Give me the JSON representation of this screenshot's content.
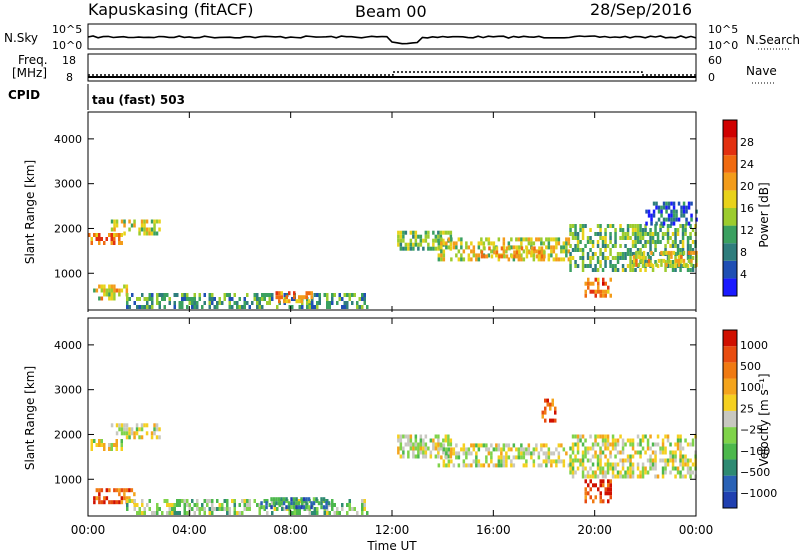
{
  "header": {
    "station": "Kapuskasing (fitACF)",
    "beam": "Beam 00",
    "date": "28/Sep/2016"
  },
  "strip_panels": {
    "nsky_label": "N.Sky",
    "nsky_ticks": [
      "10^5",
      "10^0"
    ],
    "nsearch_label": "N.Search",
    "nsearch_ticks": [
      "10^5",
      "10^0"
    ],
    "freq_label_line1": "Freq.",
    "freq_label_line2": "[MHz]",
    "freq_ticks": [
      "18",
      "8"
    ],
    "nave_label": "Nave",
    "nave_ticks": [
      "60",
      "0"
    ],
    "cpid_label": "CPID",
    "cpid_value": "tau (fast) 503"
  },
  "chart_data": [
    {
      "type": "heatmap",
      "name": "power",
      "ylabel": "Slant Range [km]",
      "ylim": [
        180,
        4600
      ],
      "yticks": [
        1000,
        2000,
        3000,
        4000
      ],
      "xlim": [
        0,
        24
      ],
      "colorbar": {
        "label": "Power [dB]",
        "ticks": [
          "4",
          "8",
          "12",
          "16",
          "20",
          "24",
          "28"
        ],
        "colors": [
          "#1a1aff",
          "#1f4fb4",
          "#2e7d7d",
          "#3aa060",
          "#9ccc2e",
          "#e8d21a",
          "#f39c1a",
          "#f06a10",
          "#e23010",
          "#d00000"
        ]
      },
      "regions": [
        {
          "t0": 0.0,
          "t1": 1.3,
          "r0": 1650,
          "r1": 1900,
          "level": 0.72
        },
        {
          "t0": 0.9,
          "t1": 2.8,
          "r0": 1900,
          "r1": 2200,
          "level": 0.45
        },
        {
          "t0": 0.2,
          "t1": 1.5,
          "r0": 450,
          "r1": 750,
          "level": 0.55
        },
        {
          "t0": 1.5,
          "t1": 11.0,
          "r0": 250,
          "r1": 560,
          "level": 0.3
        },
        {
          "t0": 7.4,
          "t1": 8.8,
          "r0": 400,
          "r1": 600,
          "level": 0.7
        },
        {
          "t0": 12.2,
          "t1": 14.3,
          "r0": 1550,
          "r1": 1950,
          "level": 0.42
        },
        {
          "t0": 13.8,
          "t1": 19.0,
          "r0": 1300,
          "r1": 1800,
          "level": 0.5
        },
        {
          "t0": 15.5,
          "t1": 18.0,
          "r0": 1350,
          "r1": 1600,
          "level": 0.62
        },
        {
          "t0": 19.0,
          "t1": 24.0,
          "r0": 1100,
          "r1": 2100,
          "level": 0.38
        },
        {
          "t0": 19.6,
          "t1": 20.6,
          "r0": 500,
          "r1": 900,
          "level": 0.75
        },
        {
          "t0": 21.5,
          "t1": 24.0,
          "r0": 1200,
          "r1": 1500,
          "level": 0.55
        },
        {
          "t0": 22.0,
          "t1": 24.0,
          "r0": 2100,
          "r1": 2600,
          "level": 0.2
        }
      ]
    },
    {
      "type": "heatmap",
      "name": "velocity",
      "ylabel": "Slant Range [km]",
      "ylim": [
        180,
        4600
      ],
      "yticks": [
        1000,
        2000,
        3000,
        4000
      ],
      "xlim": [
        0,
        24
      ],
      "xticks": [
        "00:00",
        "04:00",
        "08:00",
        "12:00",
        "16:00",
        "20:00",
        "00:00"
      ],
      "xlabel": "Time UT",
      "colorbar": {
        "label": "Velocity [m s⁻¹]",
        "ticks": [
          "1000",
          "500",
          "100",
          "25",
          "−25",
          "−100",
          "−500",
          "−1000"
        ],
        "colors": [
          "#2040b0",
          "#2a62b6",
          "#2e8a72",
          "#4cb84c",
          "#7fd34a",
          "#c8c8c0",
          "#f5d020",
          "#f4a41c",
          "#f07a12",
          "#e84c10",
          "#d01000"
        ]
      },
      "regions": [
        {
          "t0": 0.0,
          "t1": 1.3,
          "r0": 1650,
          "r1": 1900,
          "level": 0.5
        },
        {
          "t0": 0.9,
          "t1": 2.8,
          "r0": 1900,
          "r1": 2250,
          "level": 0.5
        },
        {
          "t0": 0.2,
          "t1": 1.8,
          "r0": 450,
          "r1": 800,
          "level": 0.82
        },
        {
          "t0": 1.5,
          "t1": 11.0,
          "r0": 250,
          "r1": 560,
          "level": 0.42
        },
        {
          "t0": 6.8,
          "t1": 9.5,
          "r0": 400,
          "r1": 600,
          "level": 0.22
        },
        {
          "t0": 12.2,
          "t1": 14.3,
          "r0": 1550,
          "r1": 2000,
          "level": 0.5
        },
        {
          "t0": 13.8,
          "t1": 19.0,
          "r0": 1300,
          "r1": 1800,
          "level": 0.5
        },
        {
          "t0": 19.0,
          "t1": 24.0,
          "r0": 1100,
          "r1": 2000,
          "level": 0.5
        },
        {
          "t0": 19.6,
          "t1": 20.6,
          "r0": 500,
          "r1": 1000,
          "level": 0.9
        },
        {
          "t0": 17.9,
          "t1": 18.4,
          "r0": 2300,
          "r1": 2800,
          "level": 0.85
        }
      ]
    }
  ]
}
